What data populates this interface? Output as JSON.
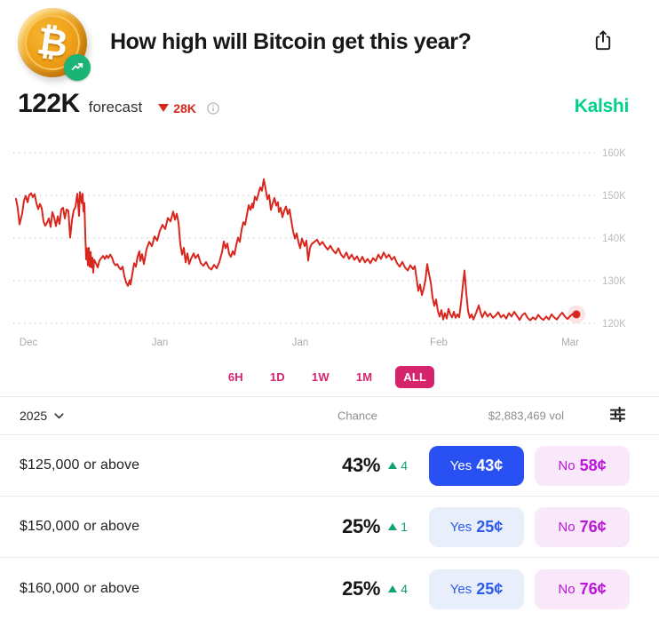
{
  "header": {
    "title": "How high will Bitcoin get this year?",
    "coin_symbol": "₿"
  },
  "forecast": {
    "value": "122K",
    "label": "forecast",
    "delta_value": "28K",
    "delta_direction": "down",
    "brand": "Kalshi"
  },
  "chart_data": {
    "type": "line",
    "title": "Bitcoin price forecast history",
    "series_name": "forecast",
    "unit": "K (USD thousands)",
    "y_min": 120,
    "y_max": 160,
    "y_tick_values": [
      160,
      150,
      140,
      130,
      120
    ],
    "y_ticks": [
      "160K",
      "150K",
      "140K",
      "130K",
      "120K"
    ],
    "x_ticks": [
      "Dec",
      "Jan",
      "Jan",
      "Feb",
      "Mar"
    ],
    "grid": "horizontal dotted",
    "legend": "none",
    "line_color": "#d8271e",
    "end_marker": true,
    "end_value": 122,
    "points": [
      [
        18,
        149.2
      ],
      [
        20,
        147.0
      ],
      [
        22,
        143.2
      ],
      [
        25,
        145.8
      ],
      [
        27,
        148.8
      ],
      [
        29,
        149.9
      ],
      [
        31,
        148.4
      ],
      [
        33,
        150.1
      ],
      [
        35,
        150.5
      ],
      [
        37,
        149.6
      ],
      [
        39,
        150.3
      ],
      [
        41,
        148.2
      ],
      [
        43,
        146.8
      ],
      [
        45,
        148.0
      ],
      [
        47,
        147.0
      ],
      [
        49,
        143.9
      ],
      [
        51,
        142.9
      ],
      [
        53,
        143.6
      ],
      [
        55,
        144.6
      ],
      [
        57,
        142.6
      ],
      [
        59,
        146.1
      ],
      [
        61,
        144.8
      ],
      [
        63,
        142.8
      ],
      [
        65,
        145.1
      ],
      [
        67,
        143.3
      ],
      [
        69,
        146.7
      ],
      [
        71,
        147.1
      ],
      [
        73,
        144.6
      ],
      [
        75,
        146.7
      ],
      [
        77,
        146.4
      ],
      [
        79,
        140.1
      ],
      [
        81,
        144.1
      ],
      [
        83,
        146.5
      ],
      [
        85,
        147.3
      ],
      [
        87,
        150.4
      ],
      [
        88,
        148.1
      ],
      [
        89,
        145.2
      ],
      [
        90,
        150.8
      ],
      [
        92,
        148.2
      ],
      [
        93,
        150.4
      ],
      [
        94,
        146.2
      ],
      [
        95,
        148.2
      ],
      [
        96,
        141.0
      ],
      [
        97,
        135.0
      ],
      [
        98,
        137.6
      ],
      [
        99,
        133.6
      ],
      [
        100,
        137.7
      ],
      [
        101,
        133.3
      ],
      [
        102,
        136.7
      ],
      [
        103,
        133.1
      ],
      [
        104,
        135.4
      ],
      [
        105,
        131.9
      ],
      [
        106,
        134.9
      ],
      [
        108,
        134.1
      ],
      [
        110,
        133.1
      ],
      [
        112,
        134.7
      ],
      [
        114,
        135.3
      ],
      [
        116,
        135.8
      ],
      [
        118,
        135.1
      ],
      [
        120,
        135.9
      ],
      [
        122,
        135.3
      ],
      [
        124,
        136.1
      ],
      [
        126,
        135.5
      ],
      [
        128,
        134.2
      ],
      [
        130,
        133.6
      ],
      [
        132,
        133.9
      ],
      [
        134,
        133.1
      ],
      [
        136,
        132.6
      ],
      [
        138,
        133.3
      ],
      [
        140,
        131.1
      ],
      [
        142,
        129.6
      ],
      [
        144,
        128.8
      ],
      [
        146,
        130.1
      ],
      [
        147,
        129.1
      ],
      [
        149,
        131.6
      ],
      [
        151,
        134.1
      ],
      [
        153,
        133.3
      ],
      [
        155,
        135.7
      ],
      [
        157,
        136.9
      ],
      [
        158,
        134.6
      ],
      [
        160,
        136.2
      ],
      [
        162,
        133.9
      ],
      [
        165,
        137.4
      ],
      [
        168,
        139.1
      ],
      [
        171,
        138.1
      ],
      [
        174,
        140.4
      ],
      [
        177,
        139.4
      ],
      [
        180,
        141.7
      ],
      [
        183,
        143.1
      ],
      [
        186,
        142.1
      ],
      [
        189,
        144.7
      ],
      [
        192,
        143.9
      ],
      [
        195,
        146.2
      ],
      [
        197,
        144.3
      ],
      [
        199,
        145.7
      ],
      [
        201,
        143.6
      ],
      [
        203,
        138.6
      ],
      [
        205,
        136.1
      ],
      [
        207,
        137.7
      ],
      [
        209,
        134.3
      ],
      [
        211,
        136.4
      ],
      [
        213,
        133.9
      ],
      [
        215,
        135.1
      ],
      [
        218,
        136.4
      ],
      [
        220,
        135.3
      ],
      [
        223,
        136.1
      ],
      [
        226,
        134.1
      ],
      [
        229,
        133.5
      ],
      [
        232,
        134.4
      ],
      [
        235,
        133.1
      ],
      [
        238,
        132.6
      ],
      [
        241,
        133.7
      ],
      [
        244,
        132.9
      ],
      [
        247,
        134.4
      ],
      [
        250,
        136.7
      ],
      [
        252,
        139.2
      ],
      [
        254,
        137.6
      ],
      [
        256,
        138.7
      ],
      [
        258,
        136.3
      ],
      [
        260,
        135.6
      ],
      [
        262,
        136.9
      ],
      [
        264,
        136.1
      ],
      [
        266,
        138.4
      ],
      [
        268,
        140.1
      ],
      [
        270,
        139.1
      ],
      [
        272,
        141.9
      ],
      [
        274,
        143.7
      ],
      [
        276,
        143.1
      ],
      [
        278,
        145.4
      ],
      [
        280,
        147.7
      ],
      [
        282,
        146.6
      ],
      [
        284,
        148.1
      ],
      [
        285,
        147.1
      ],
      [
        287,
        149.7
      ],
      [
        289,
        148.9
      ],
      [
        291,
        150.4
      ],
      [
        293,
        151.9
      ],
      [
        295,
        151.1
      ],
      [
        297,
        153.8
      ],
      [
        299,
        151.6
      ],
      [
        301,
        149.1
      ],
      [
        303,
        150.1
      ],
      [
        305,
        146.6
      ],
      [
        307,
        148.1
      ],
      [
        309,
        149.4
      ],
      [
        311,
        147.6
      ],
      [
        313,
        148.4
      ],
      [
        314,
        146.1
      ],
      [
        316,
        147.1
      ],
      [
        318,
        144.9
      ],
      [
        320,
        146.4
      ],
      [
        322,
        147.4
      ],
      [
        324,
        145.6
      ],
      [
        326,
        146.7
      ],
      [
        328,
        144.1
      ],
      [
        330,
        141.6
      ],
      [
        332,
        139.9
      ],
      [
        334,
        141.1
      ],
      [
        336,
        139.1
      ],
      [
        338,
        137.6
      ],
      [
        340,
        139.9
      ],
      [
        343,
        138.1
      ],
      [
        345,
        139.4
      ],
      [
        347,
        134.7
      ],
      [
        349,
        137.7
      ],
      [
        351,
        138.6
      ],
      [
        354,
        139.1
      ],
      [
        357,
        139.6
      ],
      [
        360,
        138.4
      ],
      [
        363,
        139.1
      ],
      [
        366,
        138.1
      ],
      [
        369,
        137.3
      ],
      [
        372,
        138.2
      ],
      [
        375,
        137.1
      ],
      [
        378,
        136.4
      ],
      [
        381,
        137.6
      ],
      [
        384,
        136.1
      ],
      [
        387,
        135.4
      ],
      [
        390,
        136.6
      ],
      [
        393,
        135.1
      ],
      [
        396,
        136.1
      ],
      [
        399,
        134.9
      ],
      [
        402,
        135.7
      ],
      [
        405,
        134.4
      ],
      [
        408,
        135.6
      ],
      [
        411,
        134.3
      ],
      [
        414,
        135.1
      ],
      [
        417,
        134.1
      ],
      [
        420,
        135.3
      ],
      [
        423,
        134.6
      ],
      [
        426,
        136.1
      ],
      [
        429,
        135.1
      ],
      [
        432,
        136.6
      ],
      [
        435,
        135.4
      ],
      [
        438,
        136.1
      ],
      [
        441,
        134.9
      ],
      [
        444,
        135.6
      ],
      [
        447,
        134.1
      ],
      [
        450,
        133.3
      ],
      [
        453,
        134.4
      ],
      [
        456,
        133.1
      ],
      [
        459,
        132.4
      ],
      [
        462,
        133.6
      ],
      [
        465,
        132.7
      ],
      [
        467,
        133.4
      ],
      [
        469,
        130.6
      ],
      [
        471,
        127.6
      ],
      [
        473,
        129.1
      ],
      [
        475,
        126.6
      ],
      [
        477,
        128.1
      ],
      [
        479,
        130.1
      ],
      [
        481,
        133.9
      ],
      [
        483,
        131.6
      ],
      [
        485,
        129.6
      ],
      [
        487,
        126.1
      ],
      [
        489,
        124.1
      ],
      [
        491,
        125.6
      ],
      [
        493,
        122.9
      ],
      [
        495,
        121.6
      ],
      [
        497,
        123.1
      ],
      [
        499,
        120.9
      ],
      [
        501,
        122.4
      ],
      [
        503,
        121.1
      ],
      [
        505,
        123.4
      ],
      [
        507,
        122.1
      ],
      [
        509,
        121.4
      ],
      [
        511,
        122.7
      ],
      [
        513,
        121.3
      ],
      [
        515,
        122.1
      ],
      [
        517,
        121.4
      ],
      [
        519,
        124.6
      ],
      [
        521,
        128.6
      ],
      [
        523,
        132.4
      ],
      [
        525,
        127.1
      ],
      [
        527,
        122.9
      ],
      [
        529,
        121.3
      ],
      [
        531,
        122.1
      ],
      [
        533,
        120.9
      ],
      [
        536,
        122.4
      ],
      [
        539,
        124.2
      ],
      [
        541,
        122.6
      ],
      [
        543,
        121.4
      ],
      [
        546,
        122.7
      ],
      [
        549,
        121.6
      ],
      [
        552,
        122.3
      ],
      [
        555,
        121.3
      ],
      [
        558,
        121.8
      ],
      [
        561,
        122.6
      ],
      [
        564,
        121.4
      ],
      [
        567,
        122.0
      ],
      [
        570,
        121.1
      ],
      [
        573,
        122.4
      ],
      [
        576,
        121.6
      ],
      [
        579,
        122.7
      ],
      [
        582,
        121.8
      ],
      [
        585,
        120.8
      ],
      [
        588,
        121.9
      ],
      [
        591,
        122.4
      ],
      [
        594,
        121.3
      ],
      [
        597,
        120.7
      ],
      [
        600,
        121.4
      ],
      [
        603,
        120.9
      ],
      [
        606,
        122.0
      ],
      [
        609,
        121.2
      ],
      [
        612,
        120.8
      ],
      [
        615,
        121.6
      ],
      [
        618,
        120.9
      ],
      [
        621,
        122.1
      ],
      [
        624,
        121.4
      ],
      [
        627,
        120.9
      ],
      [
        630,
        121.8
      ],
      [
        633,
        122.5
      ],
      [
        636,
        121.6
      ],
      [
        639,
        121.0
      ],
      [
        642,
        121.7
      ],
      [
        645,
        122.2
      ],
      [
        649,
        122.1
      ]
    ]
  },
  "range_selector": {
    "options": [
      "6H",
      "1D",
      "1W",
      "1M",
      "ALL"
    ],
    "active": "ALL"
  },
  "table": {
    "year": "2025",
    "chance_header": "Chance",
    "volume": "$2,883,469 vol",
    "rows": [
      {
        "strike": "$125,000 or above",
        "chance": "43%",
        "delta": "4",
        "yes_label": "Yes",
        "yes_price": "43¢",
        "no_label": "No",
        "no_price": "58¢"
      },
      {
        "strike": "$150,000 or above",
        "chance": "25%",
        "delta": "1",
        "yes_label": "Yes",
        "yes_price": "25¢",
        "no_label": "No",
        "no_price": "76¢"
      },
      {
        "strike": "$160,000 or above",
        "chance": "25%",
        "delta": "4",
        "yes_label": "Yes",
        "yes_price": "25¢",
        "no_label": "No",
        "no_price": "76¢"
      }
    ]
  },
  "colors": {
    "chart_red": "#d8271e",
    "range_pink": "#d6246c",
    "kalshi_green": "#00d08c",
    "yes_blue": "#2850f2",
    "no_magenta": "#bb16d8",
    "delta_green": "#0fa46c"
  }
}
